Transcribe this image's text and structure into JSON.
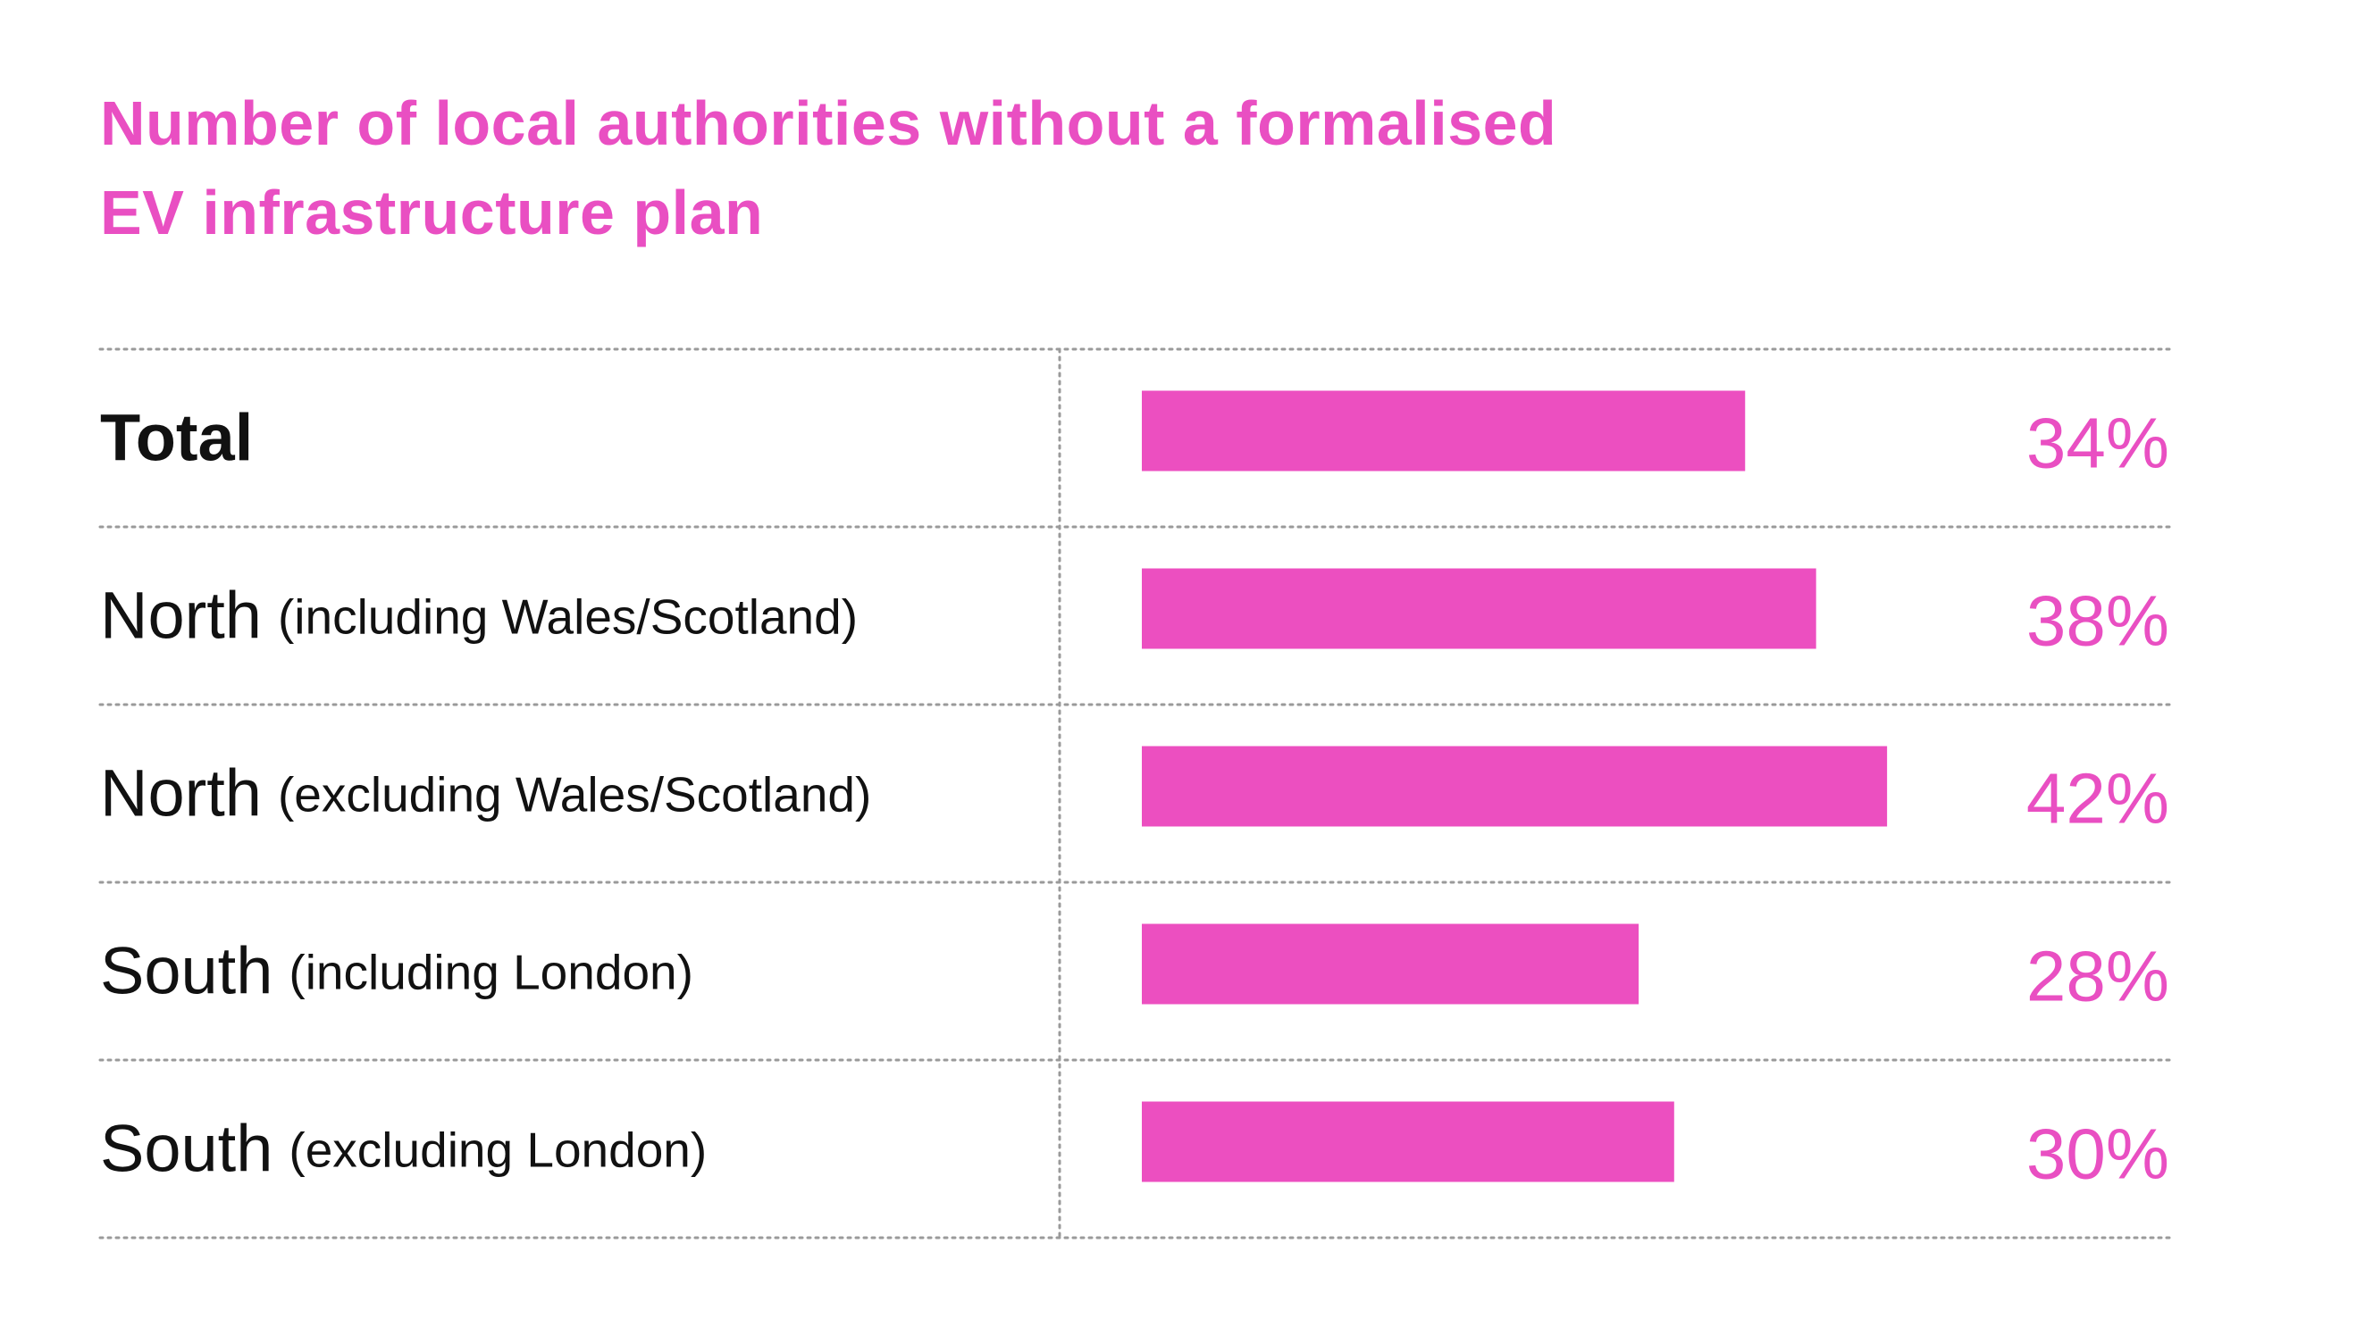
{
  "chart_data": {
    "type": "bar",
    "orientation": "horizontal",
    "title": "Number of local authorities without a formalised EV infrastructure plan",
    "title_lines": [
      "Number of local authorities without a formalised",
      "EV infrastructure plan"
    ],
    "categories": [
      {
        "main": "Total",
        "sub": "",
        "bold": true
      },
      {
        "main": "North",
        "sub": "(including Wales/Scotland)",
        "bold": false
      },
      {
        "main": "North",
        "sub": "(excluding Wales/Scotland)",
        "bold": false
      },
      {
        "main": "South",
        "sub": "(including London)",
        "bold": false
      },
      {
        "main": "South",
        "sub": "(excluding London)",
        "bold": false
      }
    ],
    "values": [
      34,
      38,
      42,
      28,
      30
    ],
    "value_labels": [
      "34%",
      "38%",
      "42%",
      "28%",
      "30%"
    ],
    "unit": "%",
    "xlim": [
      0,
      100
    ],
    "grid": false,
    "legend": "none",
    "colors": {
      "bar": "#ec4fc0",
      "title": "#e94fc2",
      "value_text": "#e94fc2",
      "label_text": "#111111",
      "divider": "#9a9a9a"
    }
  }
}
